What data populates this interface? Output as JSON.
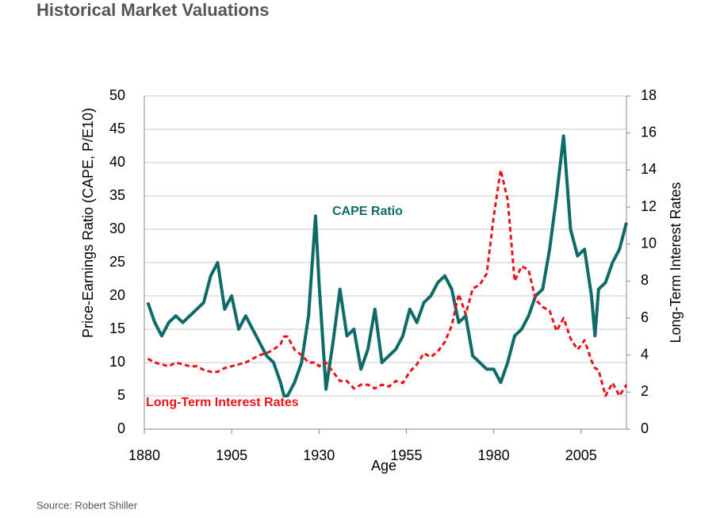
{
  "chart_data": {
    "type": "line",
    "title": "Historical Market Valuations",
    "y_label": "Price-Earnings Ratio (CAPE, P/E10)",
    "y2_label": "Long-Term Interest Rates",
    "x_label": "Age",
    "source": "Source: Robert Shiller",
    "x": [
      1881,
      1883,
      1885,
      1887,
      1889,
      1891,
      1893,
      1895,
      1897,
      1899,
      1901,
      1903,
      1905,
      1907,
      1909,
      1911,
      1913,
      1915,
      1917,
      1919,
      1920,
      1921,
      1923,
      1925,
      1927,
      1929,
      1930,
      1932,
      1934,
      1936,
      1938,
      1940,
      1942,
      1944,
      1946,
      1948,
      1950,
      1952,
      1954,
      1956,
      1958,
      1960,
      1962,
      1964,
      1966,
      1968,
      1970,
      1972,
      1974,
      1976,
      1978,
      1980,
      1982,
      1984,
      1986,
      1988,
      1990,
      1992,
      1994,
      1996,
      1998,
      2000,
      2002,
      2004,
      2006,
      2008,
      2009,
      2010,
      2012,
      2014,
      2016,
      2018
    ],
    "series": [
      {
        "name": "CAPE Ratio",
        "color": "#0e6b68",
        "dashed": false,
        "values": [
          19,
          16,
          14,
          16,
          17,
          16,
          17,
          18,
          19,
          23,
          25,
          18,
          20,
          15,
          17,
          15,
          13,
          11,
          10,
          7,
          5,
          5,
          7,
          10,
          17,
          32,
          22,
          6,
          13,
          21,
          14,
          15,
          9,
          12,
          18,
          10,
          11,
          12,
          14,
          18,
          16,
          19,
          20,
          22,
          23,
          21,
          16,
          17,
          11,
          10,
          9,
          9,
          7,
          10,
          14,
          15,
          17,
          20,
          21,
          27,
          35,
          44,
          30,
          26,
          27,
          20,
          14,
          21,
          22,
          25,
          27,
          31
        ]
      },
      {
        "name": "Long-Term Interest Rates",
        "color": "#e8141b",
        "dashed": true,
        "axis": "y2",
        "values": [
          3.8,
          3.6,
          3.5,
          3.4,
          3.6,
          3.5,
          3.4,
          3.4,
          3.2,
          3.1,
          3.1,
          3.3,
          3.4,
          3.5,
          3.6,
          3.8,
          4.0,
          4.1,
          4.3,
          4.6,
          5.0,
          5.0,
          4.3,
          4.0,
          3.6,
          3.6,
          3.4,
          3.6,
          3.1,
          2.6,
          2.6,
          2.2,
          2.4,
          2.4,
          2.2,
          2.4,
          2.3,
          2.6,
          2.5,
          3.1,
          3.5,
          4.1,
          3.9,
          4.2,
          4.7,
          5.6,
          7.3,
          6.2,
          7.6,
          7.8,
          8.4,
          11.5,
          14.0,
          12.4,
          8.0,
          8.8,
          8.6,
          7.0,
          6.6,
          6.4,
          5.3,
          6.0,
          4.9,
          4.3,
          4.8,
          3.7,
          3.3,
          3.2,
          1.8,
          2.5,
          1.8,
          2.4
        ]
      }
    ],
    "xlim": [
      1880,
      2018
    ],
    "xticks": [
      1880,
      1905,
      1930,
      1955,
      1980,
      2005
    ],
    "ylim": [
      0,
      50
    ],
    "yticks": [
      0,
      5,
      10,
      15,
      20,
      25,
      30,
      35,
      40,
      45,
      50
    ],
    "y2lim": [
      0,
      18
    ],
    "y2ticks": [
      0,
      2,
      4,
      6,
      8,
      10,
      12,
      14,
      16,
      18
    ],
    "grid": true
  }
}
